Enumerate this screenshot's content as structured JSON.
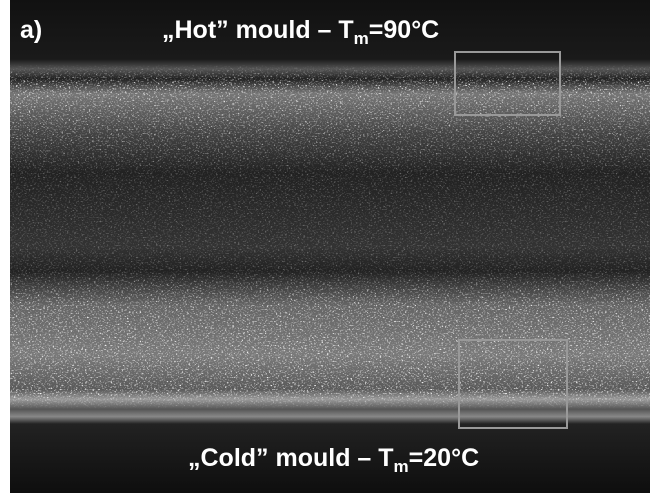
{
  "panel_label": "a)",
  "top_label": {
    "text_before": "„Hot” mould – T",
    "subscript": "m",
    "text_after": "=90°C"
  },
  "bottom_label": {
    "text_before": "„Cold” mould – T",
    "subscript": "m",
    "text_after": "=20°C"
  }
}
